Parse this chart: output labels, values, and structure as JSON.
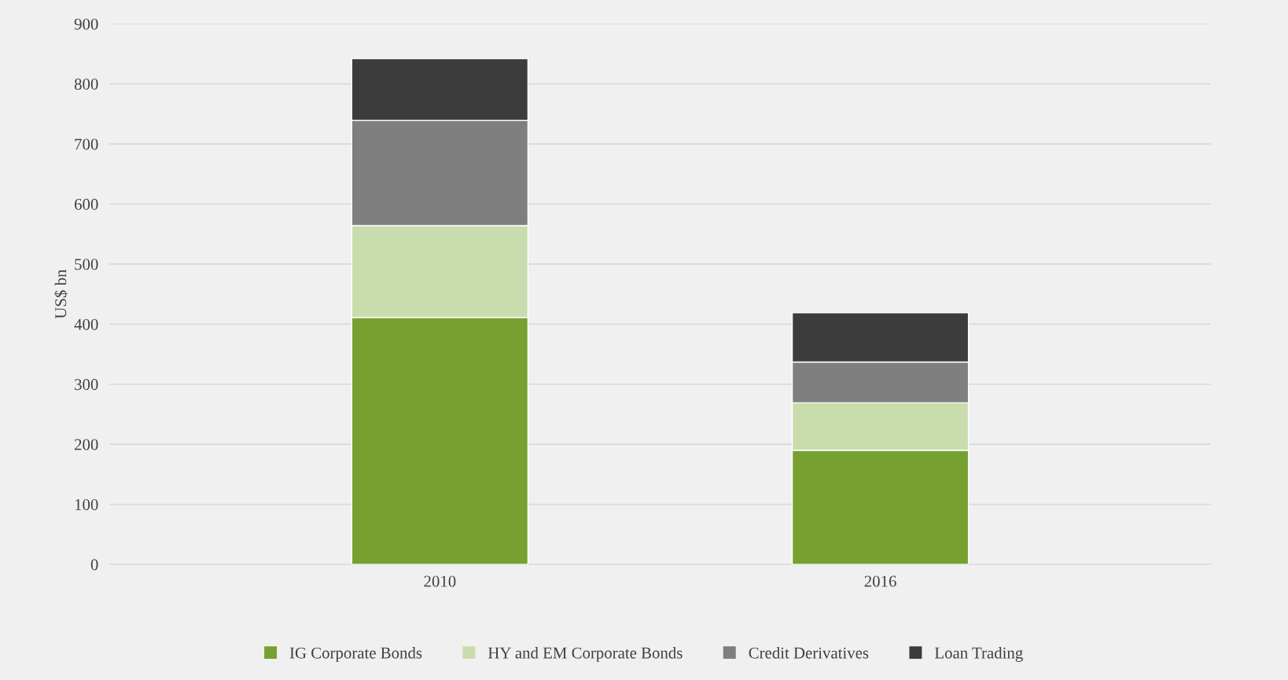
{
  "chart_data": {
    "type": "bar",
    "stacked": true,
    "ylabel": "US$ bn",
    "categories": [
      "2010",
      "2016"
    ],
    "series": [
      {
        "name": "IG Corporate Bonds",
        "color": "#76a130",
        "values": [
          411,
          190
        ]
      },
      {
        "name": "HY and EM Corporate Bonds",
        "color": "#c9dcad",
        "values": [
          153,
          79
        ]
      },
      {
        "name": "Credit Derivatives",
        "color": "#7f7f7f",
        "values": [
          175,
          68
        ]
      },
      {
        "name": "Loan Trading",
        "color": "#3c3c3c",
        "values": [
          103,
          82
        ]
      }
    ],
    "ylim": [
      0,
      900
    ],
    "yticks": [
      0,
      100,
      200,
      300,
      400,
      500,
      600,
      700,
      800,
      900
    ],
    "grid": "y",
    "legend": "bottom"
  }
}
